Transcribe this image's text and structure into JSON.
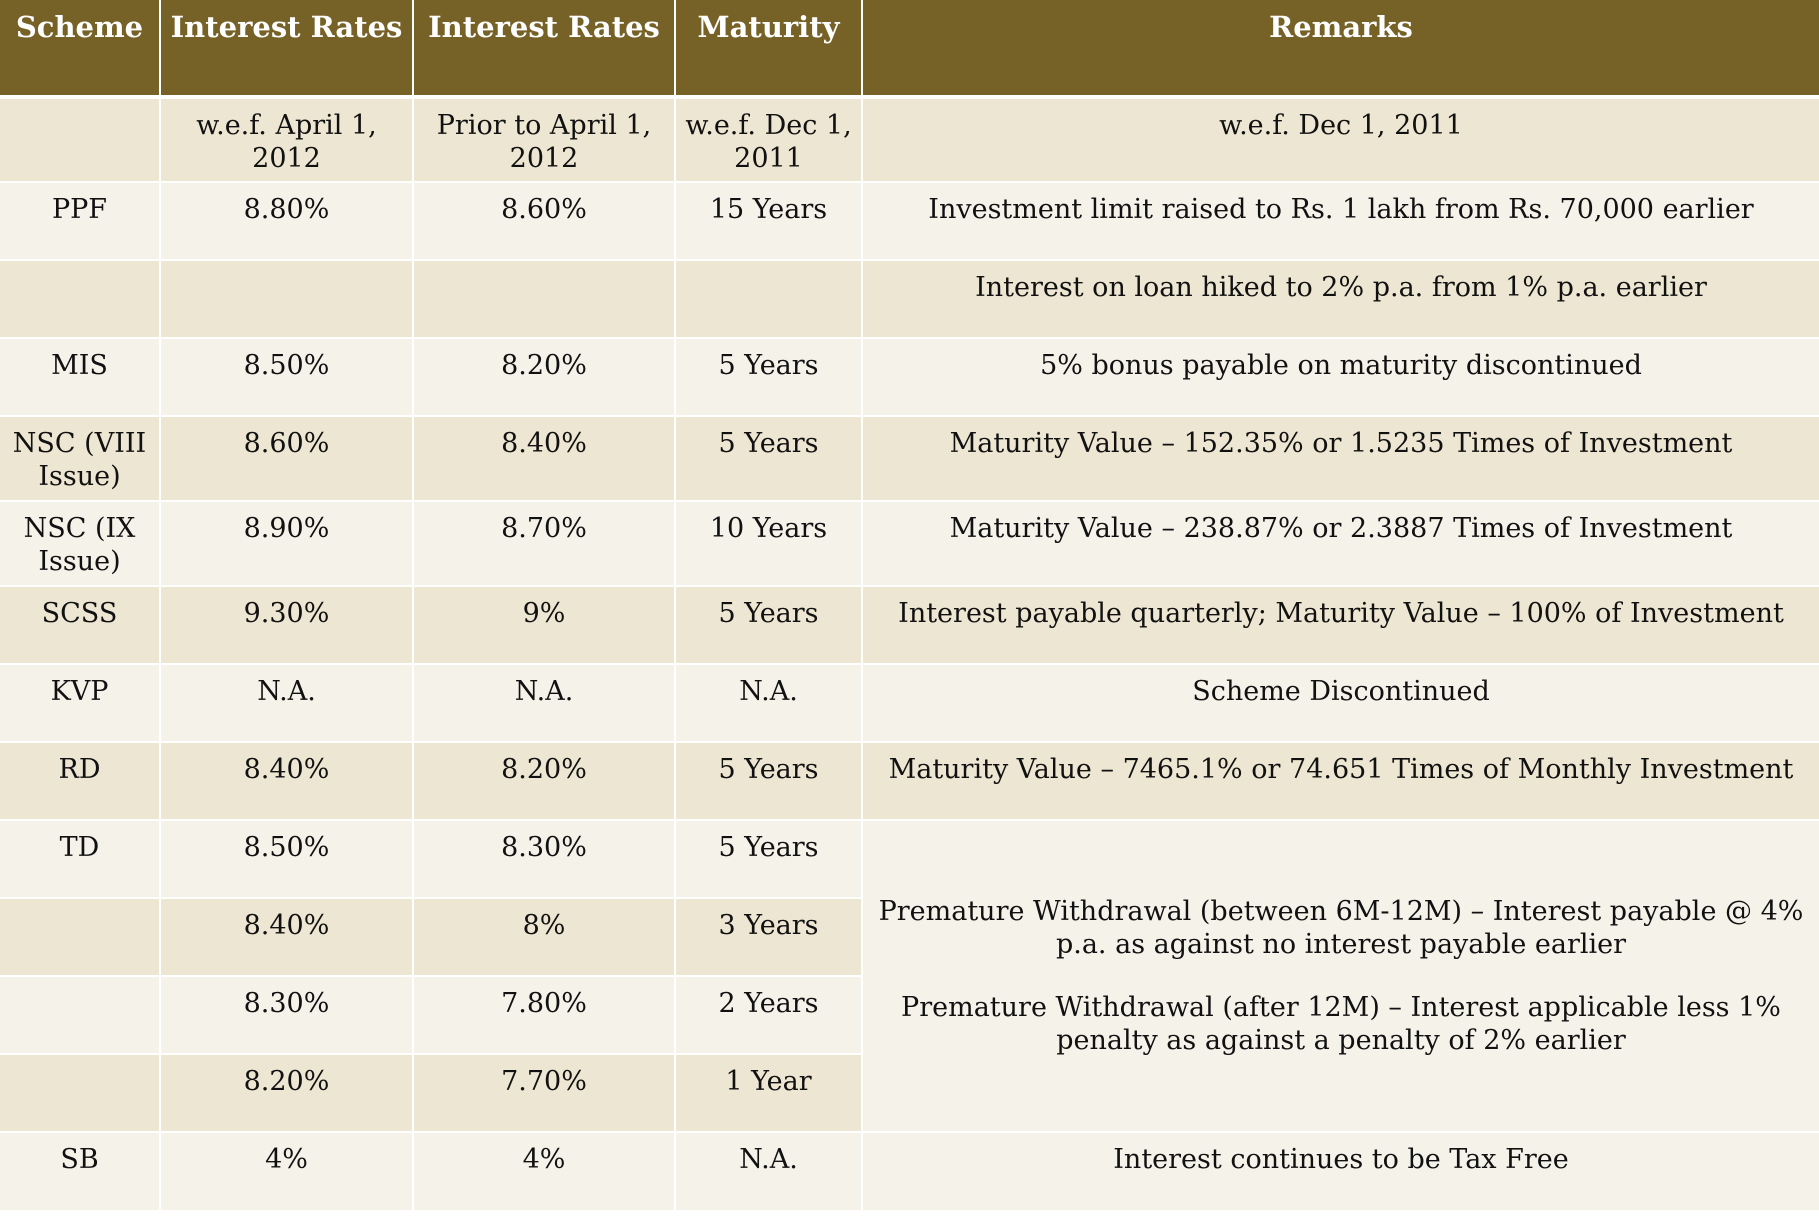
{
  "headers": [
    "Scheme",
    "Interest Rates",
    "Interest Rates",
    "Maturity",
    "Remarks"
  ],
  "subheader": {
    "scheme": "",
    "rate_new": "w.e.f. April 1, 2012",
    "rate_old": "Prior to April 1, 2012",
    "maturity": "w.e.f. Dec 1, 2011",
    "remarks": "w.e.f. Dec 1, 2011"
  },
  "rows": [
    {
      "scheme": "PPF",
      "rate_new": "8.80%",
      "rate_old": "8.60%",
      "maturity": "15 Years",
      "remarks": "Investment limit raised to Rs. 1 lakh from Rs. 70,000 earlier"
    },
    {
      "scheme": "",
      "rate_new": "",
      "rate_old": "",
      "maturity": "",
      "remarks": "Interest on loan hiked to 2% p.a. from 1% p.a. earlier"
    },
    {
      "scheme": "MIS",
      "rate_new": "8.50%",
      "rate_old": "8.20%",
      "maturity": "5 Years",
      "remarks": "5% bonus payable on maturity discontinued"
    },
    {
      "scheme": "NSC (VIII Issue)",
      "rate_new": "8.60%",
      "rate_old": "8.40%",
      "maturity": "5 Years",
      "remarks": "Maturity Value – 152.35% or 1.5235 Times of Investment"
    },
    {
      "scheme": "NSC (IX Issue)",
      "rate_new": "8.90%",
      "rate_old": "8.70%",
      "maturity": "10 Years",
      "remarks": "Maturity Value – 238.87% or 2.3887 Times of Investment"
    },
    {
      "scheme": "SCSS",
      "rate_new": "9.30%",
      "rate_old": "9%",
      "maturity": "5 Years",
      "remarks": "Interest payable quarterly; Maturity Value – 100% of Investment"
    },
    {
      "scheme": "KVP",
      "rate_new": "N.A.",
      "rate_old": "N.A.",
      "maturity": "N.A.",
      "remarks": "Scheme Discontinued"
    },
    {
      "scheme": "RD",
      "rate_new": "8.40%",
      "rate_old": "8.20%",
      "maturity": "5 Years",
      "remarks": "Maturity Value – 7465.1% or 74.651 Times of Monthly Investment"
    },
    {
      "scheme": "TD",
      "rate_new": "8.50%",
      "rate_old": "8.30%",
      "maturity": "5 Years"
    },
    {
      "scheme": "",
      "rate_new": "8.40%",
      "rate_old": "8%",
      "maturity": "3 Years"
    },
    {
      "scheme": "",
      "rate_new": "8.30%",
      "rate_old": "7.80%",
      "maturity": "2 Years"
    },
    {
      "scheme": "",
      "rate_new": "8.20%",
      "rate_old": "7.70%",
      "maturity": "1 Year"
    },
    {
      "scheme": "SB",
      "rate_new": "4%",
      "rate_old": "4%",
      "maturity": "N.A.",
      "remarks": "Interest continues to be Tax Free"
    }
  ],
  "td_remarks": [
    "Premature Withdrawal (between 6M-12M) – Interest payable @ 4% p.a. as against no interest payable earlier",
    "Premature Withdrawal (after 12M) – Interest applicable less 1% penalty as against a penalty of 2% earlier"
  ],
  "colors": {
    "header_bg": "#766126",
    "row_dark": "#ede6d2",
    "row_light": "#f5f2ea"
  }
}
